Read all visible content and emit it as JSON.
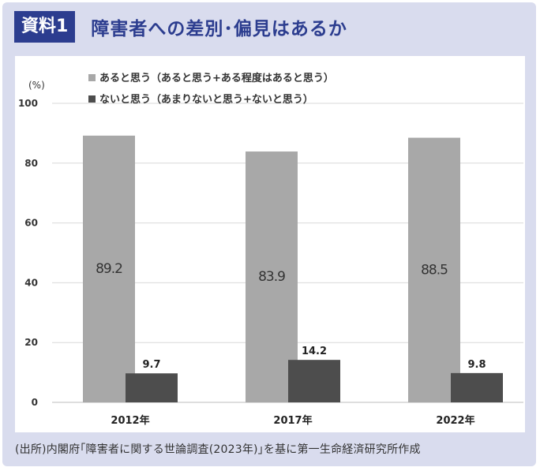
{
  "header": {
    "badge": "資料1",
    "title": "障害者への差別･偏見はあるか"
  },
  "footer": {
    "source": "(出所)内閣府｢障害者に関する世論調査(2023年)｣を基に第一生命経済研究所作成"
  },
  "chart_data": {
    "type": "bar",
    "unit_label": "(%)",
    "categories": [
      "2012年",
      "2017年",
      "2022年"
    ],
    "series": [
      {
        "name": "あると思う（あると思う+ある程度はあると思う）",
        "color": "#a8a8a8",
        "values": [
          89.2,
          83.9,
          88.5
        ],
        "labels": [
          "89.2",
          "83.9",
          "88.5"
        ],
        "label_position": "inside"
      },
      {
        "name": "ないと思う（あまりないと思う+ないと思う）",
        "color": "#4d4d4d",
        "values": [
          9.7,
          14.2,
          9.8
        ],
        "labels": [
          "9.7",
          "14.2",
          "9.8"
        ],
        "label_position": "top"
      }
    ],
    "ylim": [
      0,
      100
    ],
    "yticks": [
      0,
      20,
      40,
      60,
      80,
      100
    ],
    "grid": true,
    "legend_position": "top-left"
  }
}
